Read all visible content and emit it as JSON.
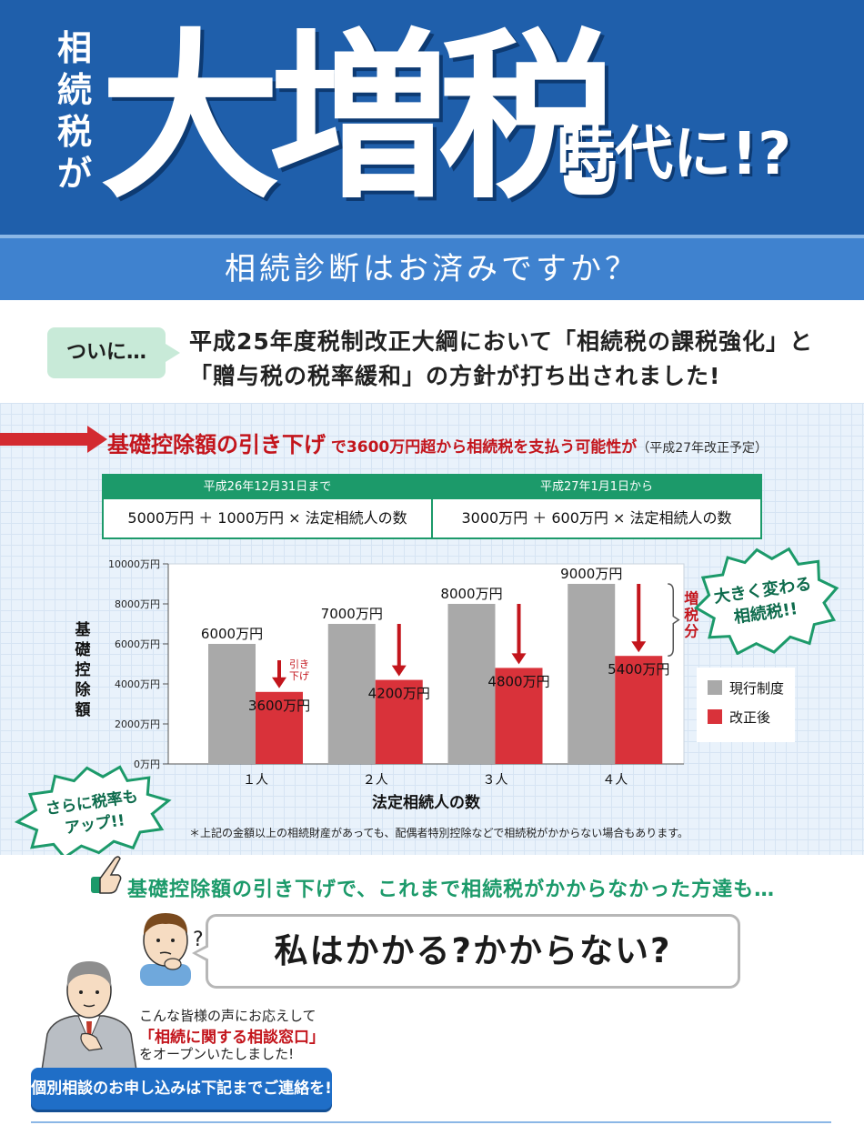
{
  "header": {
    "vertical_text": [
      "相",
      "続",
      "税",
      "が"
    ],
    "big_text": "大増税",
    "tail_text": "時代に!?",
    "subtitle": "相続診断はお済みですか？"
  },
  "intro": {
    "badge": "ついに…",
    "line1": "平成25年度税制改正大綱において「相続税の課税強化」と",
    "line2": "「贈与税の税率緩和」の方針が打ち出されました!"
  },
  "headline": {
    "main": "基礎控除額の引き下げ",
    "middle": " で3600万円超から相続税を支払う可能性が",
    "note": "（平成27年改正予定）"
  },
  "comparison": {
    "before": {
      "header": "平成26年12月31日まで",
      "formula": "5000万円 ＋ 1000万円 × 法定相続人の数"
    },
    "after": {
      "header": "平成27年1月1日から",
      "formula": "3000万円 ＋ 600万円 × 法定相続人の数"
    }
  },
  "chart_data": {
    "type": "bar",
    "categories": [
      "１人",
      "２人",
      "３人",
      "４人"
    ],
    "series": [
      {
        "name": "現行制度",
        "values": [
          6000,
          7000,
          8000,
          9000
        ],
        "color": "#a9a9a9",
        "labels": [
          "6000万円",
          "7000万円",
          "8000万円",
          "9000万円"
        ]
      },
      {
        "name": "改正後",
        "values": [
          3600,
          4200,
          4800,
          5400
        ],
        "color": "#d9323a",
        "labels": [
          "3600万円",
          "4200万円",
          "4800万円",
          "5400万円"
        ]
      }
    ],
    "ylim": [
      0,
      10000
    ],
    "yticks": [
      0,
      2000,
      4000,
      6000,
      8000,
      10000
    ],
    "ytick_labels": [
      "0万円",
      "2000万円",
      "4000万円",
      "6000万円",
      "8000万円",
      "10000万円"
    ],
    "ylabel": "基礎控除額",
    "xlabel": "法定相続人の数",
    "annotation_down": "引き下げ",
    "annotation_increase": "増税分",
    "legend_position": "right",
    "grid": false
  },
  "callouts": {
    "big_change": [
      "大きく変わる",
      "相続税!!"
    ],
    "rate_up": [
      "さらに税率も",
      "アップ!!"
    ]
  },
  "footnote": "＊上記の金額以上の相続財産があっても、配偶者特別控除などで相続税がかからない場合もあります。",
  "lower": {
    "headline": "基礎控除額の引き下げで、これまで相続税がかからなかった方達も…",
    "speech": "私はかかる?かからない?",
    "question_mark": "?",
    "note1": "こんな皆様の声にお応えして",
    "note_red": "「相続に関する相談窓口」",
    "note3": "をオープンいたしました!",
    "cta": "個別相談のお申し込みは下記までご連絡を!"
  },
  "colors": {
    "header_blue": "#1f5fab",
    "band_blue": "#3f82cf",
    "green": "#1c9a6a",
    "red": "#d32a30"
  }
}
